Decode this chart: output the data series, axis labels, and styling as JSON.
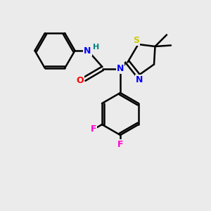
{
  "background_color": "#ebebeb",
  "bond_color": "#000000",
  "bond_width": 1.8,
  "atom_colors": {
    "C": "#000000",
    "N": "#0000ff",
    "O": "#ff0000",
    "S": "#cccc00",
    "F": "#ff00cc",
    "H": "#008080"
  },
  "figsize": [
    3.0,
    3.0
  ],
  "dpi": 100,
  "xlim": [
    0,
    10
  ],
  "ylim": [
    0,
    10
  ]
}
